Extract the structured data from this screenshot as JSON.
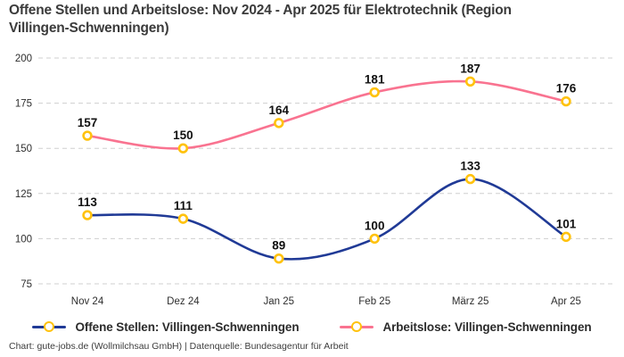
{
  "title": "Offene Stellen und Arbeitslose: Nov 2024 - Apr 2025 für Elektrotechnik (Region Villingen-Schwenningen)",
  "attribution": "Chart: gute-jobs.de (Wollmilchsau GmbH) | Datenquelle: Bundesagentur für Arbeit",
  "colors": {
    "title_text": "#3b3b3b",
    "open_positions_line": "#203a96",
    "unemployed_line": "#f97390",
    "marker_ring": "#ffc20e",
    "marker_fill": "#ffffff",
    "gridline": "#cfcfcf",
    "tick_text": "#2e2e2e",
    "data_label_text": "#111111"
  },
  "chart_data": {
    "type": "line",
    "title": "Offene Stellen und Arbeitslose: Nov 2024 - Apr 2025 für Elektrotechnik (Region Villingen-Schwenningen)",
    "categories": [
      "Nov 24",
      "Dez 24",
      "Jan 25",
      "Feb 25",
      "März 25",
      "Apr 25"
    ],
    "series": [
      {
        "name": "Offene Stellen: Villingen-Schwenningen",
        "color": "#203a96",
        "values": [
          113,
          111,
          89,
          100,
          133,
          101
        ]
      },
      {
        "name": "Arbeitslose: Villingen-Schwenningen",
        "color": "#f97390",
        "values": [
          157,
          150,
          164,
          181,
          187,
          176
        ]
      }
    ],
    "ylim": [
      75,
      200
    ],
    "yticks": [
      75,
      100,
      125,
      150,
      175,
      200
    ],
    "grid": "horizontal-dashed",
    "legend_position": "bottom",
    "marker": "open-circle-gold",
    "data_labels": true
  }
}
